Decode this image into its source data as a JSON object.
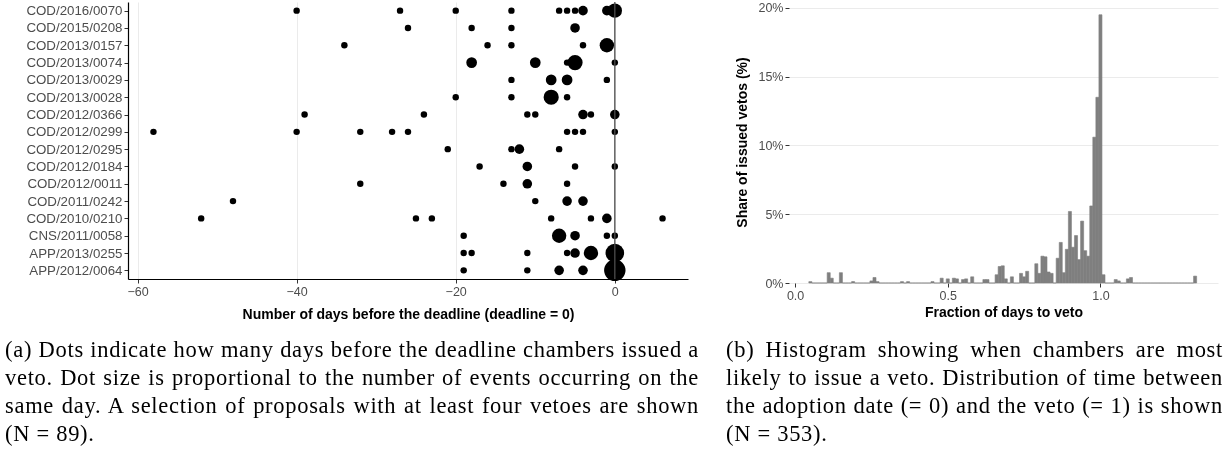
{
  "chart_data": [
    {
      "type": "bubble",
      "orientation": "horizontal",
      "xlabel": "Number of days before the deadline (deadline = 0)",
      "annotations": [
        "(a) Dots indicate how many days before the deadline chambers issued a veto. Dot size is proportional to the number of events occurring on the same day. A selection of proposals with at least four vetoes are shown (N = 89)."
      ],
      "categories": [
        "COD/2016/0070",
        "COD/2015/0208",
        "COD/2013/0157",
        "COD/2013/0074",
        "COD/2013/0029",
        "COD/2013/0028",
        "COD/2012/0366",
        "COD/2012/0299",
        "COD/2012/0295",
        "COD/2012/0184",
        "COD/2012/0011",
        "COD/2011/0242",
        "COD/2010/0210",
        "CNS/2011/0058",
        "APP/2013/0255",
        "APP/2012/0064"
      ],
      "series": [
        {
          "color": "#000000",
          "values": [
            -40,
            -26,
            -34,
            -18,
            -13,
            -20,
            -39,
            -58,
            -21,
            -17,
            -32,
            -48,
            -52,
            -19,
            -19,
            -19
          ],
          "sizes": [
            0.09,
            0.09,
            0.09,
            0.25,
            0.09,
            0.09,
            0.09,
            0.09,
            0.09,
            0.09,
            0.09,
            0.09,
            0.09,
            0.09,
            0.09,
            0.09
          ]
        },
        {
          "color": "#000000",
          "values": [
            -27,
            -18,
            -16,
            -10,
            -8,
            -13,
            -24,
            -40,
            -13,
            -11,
            -14,
            -10,
            -25,
            -7,
            -18,
            -11
          ],
          "sizes": [
            0.09,
            0.09,
            0.09,
            0.25,
            0.25,
            0.09,
            0.09,
            0.09,
            0.09,
            0.2,
            0.09,
            0.09,
            0.09,
            0.45,
            0.09,
            0.09
          ]
        },
        {
          "color": "#000000",
          "values": [
            -20,
            -13,
            -13,
            -6,
            -6,
            -8,
            -11,
            -32,
            -12,
            -5,
            -11,
            -6,
            -23,
            -5,
            -11,
            -7
          ],
          "sizes": [
            0.09,
            0.09,
            0.09,
            0.09,
            0.25,
            0.5,
            0.09,
            0.09,
            0.2,
            0.09,
            0.2,
            0.2,
            0.09,
            0.2,
            0.09,
            0.2
          ]
        },
        {
          "color": "#000000",
          "values": [
            -13,
            -5,
            -4,
            -5,
            -1,
            -6,
            -10,
            -28,
            -7,
            0,
            -6,
            -4,
            -8,
            -1,
            -6,
            -4
          ],
          "sizes": [
            0.09,
            0.2,
            0.09,
            0.5,
            0.09,
            0.09,
            0.09,
            0.09,
            0.09,
            0.09,
            0.09,
            0.2,
            0.09,
            0.09,
            0.09,
            0.2
          ]
        },
        {
          "color": "#000000",
          "values": [
            -7,
            null,
            -1,
            0,
            null,
            null,
            -4,
            -26,
            null,
            null,
            null,
            null,
            -3,
            0,
            -5,
            0
          ],
          "sizes": [
            0.09,
            null,
            0.45,
            0.09,
            null,
            null,
            0.2,
            0.09,
            null,
            null,
            null,
            null,
            0.09,
            0.09,
            0.2,
            1
          ]
        },
        {
          "color": "#000000",
          "values": [
            -6,
            null,
            null,
            null,
            null,
            null,
            -3,
            -6,
            null,
            null,
            null,
            null,
            -1,
            null,
            -3,
            null
          ],
          "sizes": [
            0.09,
            null,
            null,
            null,
            null,
            null,
            0.09,
            0.09,
            null,
            null,
            null,
            null,
            0.2,
            null,
            0.45,
            null
          ]
        },
        {
          "color": "#000000",
          "values": [
            -5,
            null,
            null,
            null,
            null,
            null,
            0,
            -5,
            null,
            null,
            null,
            null,
            6,
            null,
            0,
            null
          ],
          "sizes": [
            0.09,
            null,
            null,
            null,
            null,
            null,
            0.2,
            0.09,
            null,
            null,
            null,
            null,
            0.09,
            null,
            0.75,
            null
          ]
        },
        {
          "color": "#000000",
          "values": [
            -4,
            null,
            null,
            null,
            null,
            null,
            null,
            -4,
            null,
            null,
            null,
            null,
            null,
            null,
            null,
            null
          ],
          "sizes": [
            0.2,
            null,
            null,
            null,
            null,
            null,
            null,
            0.09,
            null,
            null,
            null,
            null,
            null,
            null,
            null,
            null
          ]
        },
        {
          "color": "#000000",
          "values": [
            -1,
            null,
            null,
            null,
            null,
            null,
            null,
            0,
            null,
            null,
            null,
            null,
            null,
            null,
            null,
            null
          ],
          "sizes": [
            0.2,
            null,
            null,
            null,
            null,
            null,
            null,
            0.09,
            null,
            null,
            null,
            null,
            null,
            null,
            null,
            null
          ]
        },
        {
          "color": "#000000",
          "values": [
            0,
            null,
            null,
            null,
            null,
            null,
            null,
            null,
            null,
            null,
            null,
            null,
            null,
            null,
            null,
            null
          ],
          "sizes": [
            0.45,
            null,
            null,
            null,
            null,
            null,
            null,
            null,
            null,
            null,
            null,
            null,
            null,
            null,
            null,
            null
          ]
        }
      ],
      "xlim": [
        -61.2,
        9.2
      ],
      "xticks": [
        {
          "value": -60,
          "label": "−60"
        },
        {
          "value": -40,
          "label": "−40"
        },
        {
          "value": -20,
          "label": "−20"
        },
        0
      ],
      "grid": "x",
      "ref_lines": [
        {
          "axis": "x",
          "value": 0,
          "color": "#4d4d4d"
        }
      ]
    },
    {
      "type": "histogram",
      "xlabel": "Fraction of days to veto",
      "ylabel": "Share of issued vetos (%)",
      "annotations": [
        "(b) Histogram showing when chambers are most likely to issue a veto. Distribution of time between the adoption date (= 0) and the veto (= 1) is shown (N = 353)."
      ],
      "bins": [
        0.045,
        0.055,
        0.065,
        0.075,
        0.085,
        0.095,
        0.105,
        0.115,
        0.125,
        0.135,
        0.145,
        0.155,
        0.165,
        0.175,
        0.185,
        0.195,
        0.205,
        0.215,
        0.225,
        0.235,
        0.245,
        0.255,
        0.265,
        0.275,
        0.285,
        0.295,
        0.305,
        0.315,
        0.325,
        0.335,
        0.345,
        0.355,
        0.365,
        0.375,
        0.385,
        0.395,
        0.405,
        0.415,
        0.425,
        0.435,
        0.445,
        0.455,
        0.465,
        0.475,
        0.485,
        0.495,
        0.505,
        0.515,
        0.525,
        0.535,
        0.545,
        0.555,
        0.565,
        0.575,
        0.585,
        0.595,
        0.605,
        0.615,
        0.625,
        0.635,
        0.645,
        0.655,
        0.665,
        0.675,
        0.685,
        0.695,
        0.705,
        0.715,
        0.725,
        0.735,
        0.745,
        0.755,
        0.765,
        0.775,
        0.785,
        0.795,
        0.805,
        0.815,
        0.825,
        0.835,
        0.845,
        0.855,
        0.865,
        0.875,
        0.885,
        0.895,
        0.905,
        0.915,
        0.925,
        0.935,
        0.945,
        0.955,
        0.965,
        0.975,
        0.985,
        0.995,
        1.005,
        1.015,
        1.025,
        1.035,
        1.045,
        1.055,
        1.065,
        1.075,
        1.085,
        1.095,
        1.105,
        1.115,
        1.125,
        1.135,
        1.145,
        1.155,
        1.165,
        1.175,
        1.185,
        1.195,
        1.205,
        1.215,
        1.225,
        1.235,
        1.245,
        1.255,
        1.265,
        1.275,
        1.285,
        1.295,
        1.305,
        1.315
      ],
      "values": [
        0.1,
        0,
        0,
        0,
        0,
        0,
        0.75,
        0.35,
        0,
        0,
        0.75,
        0,
        0,
        0,
        0.1,
        0,
        0,
        0,
        0,
        0,
        0.15,
        0.4,
        0.1,
        0,
        0,
        0,
        0,
        0,
        0,
        0,
        0.1,
        0,
        0.1,
        0,
        0,
        0,
        0,
        0,
        0,
        0,
        0.1,
        0,
        0,
        0.35,
        0,
        0.3,
        0,
        0.35,
        0.3,
        0,
        0.25,
        0.3,
        0,
        0.45,
        0,
        0,
        0,
        0.25,
        0.25,
        0,
        0,
        0.6,
        1.2,
        1.25,
        0.3,
        0,
        0.45,
        0,
        0,
        0.7,
        0.45,
        0.85,
        0,
        0,
        1.4,
        0.7,
        1.95,
        1.9,
        0.8,
        0.7,
        0,
        1.8,
        2.95,
        0.75,
        2.45,
        5.2,
        2.6,
        3.45,
        1.7,
        4.5,
        2.35,
        1.95,
        5.6,
        10.6,
        13.5,
        19.5,
        0.6,
        0,
        0,
        0,
        0.25,
        0.15,
        0,
        0,
        0.3,
        0.4,
        0,
        0,
        0,
        0,
        0,
        0,
        0,
        0,
        0,
        0,
        0,
        0,
        0,
        0,
        0,
        0,
        0,
        0,
        0,
        0,
        0.5
      ],
      "color": "#7f7f7f",
      "xlim": [
        -0.02,
        1.385
      ],
      "xticks": [
        {
          "value": 0,
          "label": "0.0"
        },
        {
          "value": 0.5,
          "label": "0.5"
        },
        {
          "value": 1,
          "label": "1.0"
        }
      ],
      "ylim": [
        0,
        20.5
      ],
      "yticks": [
        {
          "value": 0,
          "label": "0%"
        },
        {
          "value": 5,
          "label": "5%"
        },
        {
          "value": 10,
          "label": "10%"
        },
        {
          "value": 15,
          "label": "15%"
        },
        {
          "value": 20,
          "label": "20%"
        }
      ],
      "grid": "y"
    }
  ]
}
